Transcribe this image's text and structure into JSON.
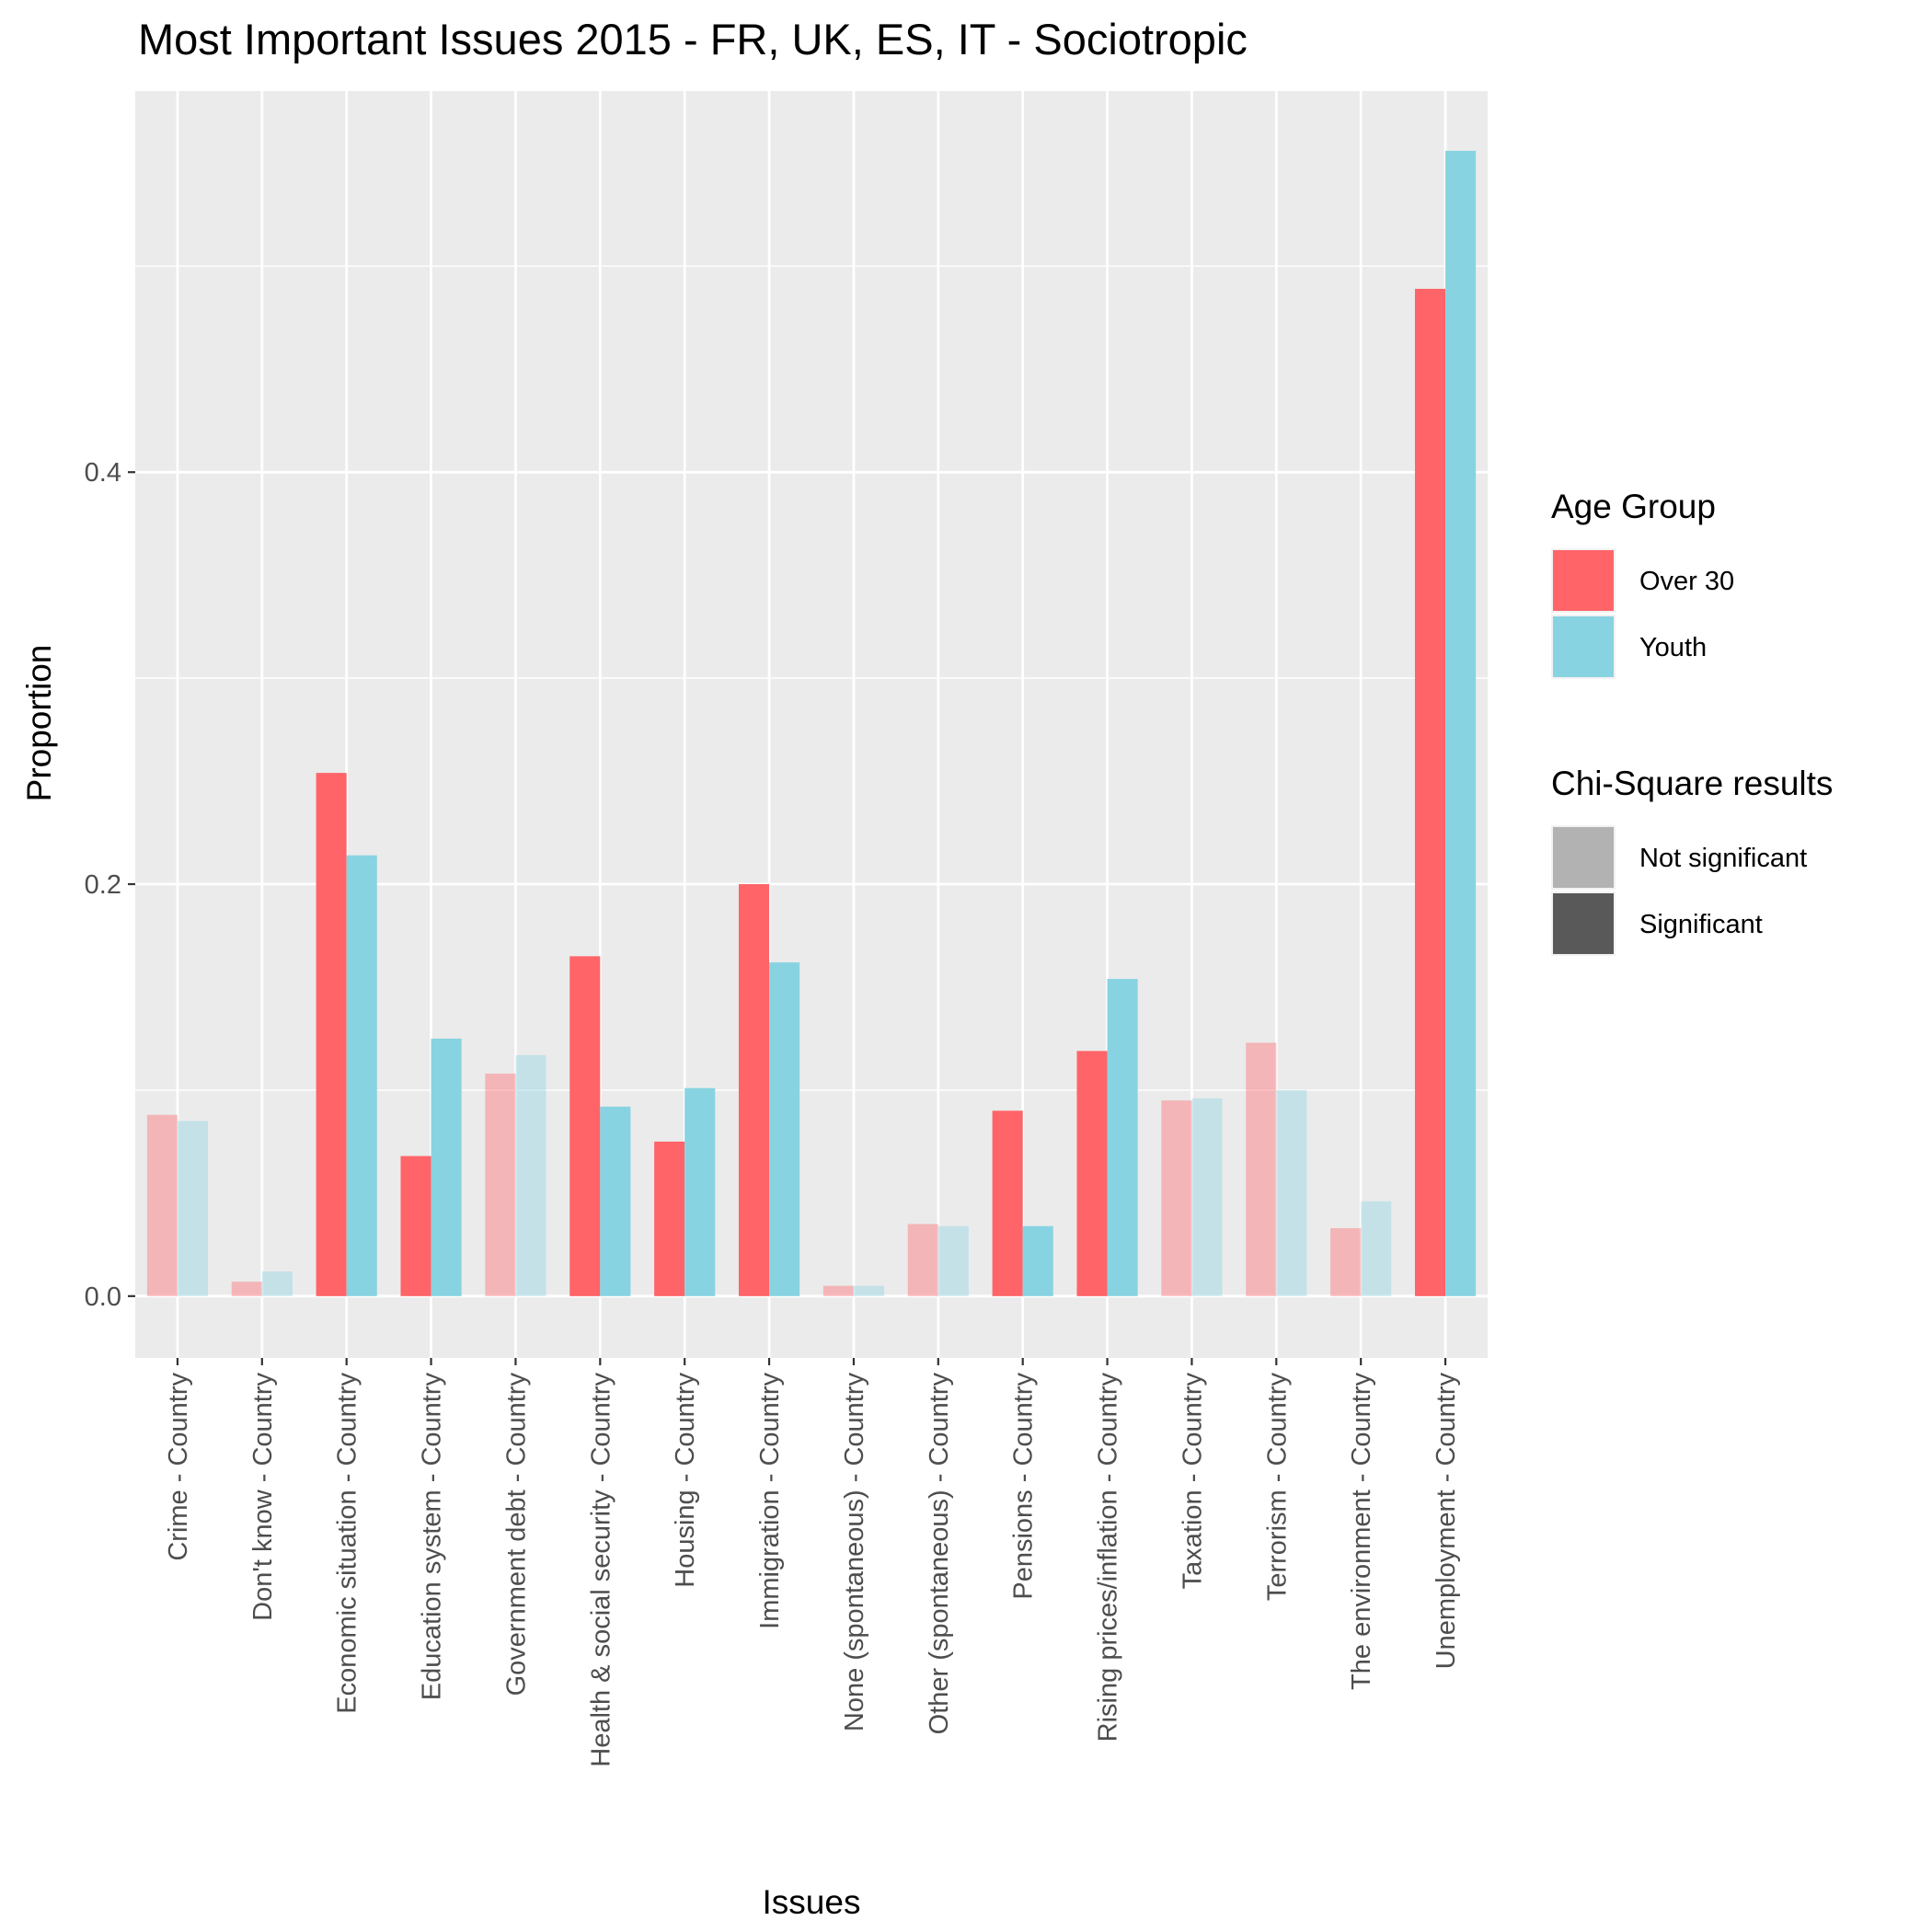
{
  "chart_data": {
    "type": "bar",
    "title": "Most Important Issues 2015 - FR, UK, ES, IT - Sociotropic",
    "xlabel": "Issues",
    "ylabel": "Proportion",
    "ylim": [
      -0.03,
      0.585
    ],
    "y_ticks": [
      0.0,
      0.2,
      0.4
    ],
    "y_tick_labels": [
      "0.0",
      "0.2",
      "0.4"
    ],
    "grid": true,
    "legend_position": "right",
    "categories": [
      "Crime - Country",
      "Don't know - Country",
      "Economic situation - Country",
      "Education system - Country",
      "Government debt - Country",
      "Health & social security - Country",
      "Housing - Country",
      "Immigration - Country",
      "None (spontaneous) - Country",
      "Other (spontaneous) - Country",
      "Pensions - Country",
      "Rising prices/inflation - Country",
      "Taxation - Country",
      "Terrorism - Country",
      "The environment - Country",
      "Unemployment - Country"
    ],
    "series": [
      {
        "name": "Over 30",
        "color": "#FF6469",
        "values": [
          0.088,
          0.007,
          0.254,
          0.068,
          0.108,
          0.165,
          0.075,
          0.2,
          0.005,
          0.035,
          0.09,
          0.119,
          0.095,
          0.123,
          0.033,
          0.489
        ]
      },
      {
        "name": "Youth",
        "color": "#88D3E1",
        "values": [
          0.085,
          0.012,
          0.214,
          0.125,
          0.117,
          0.092,
          0.101,
          0.162,
          0.005,
          0.034,
          0.034,
          0.154,
          0.096,
          0.1,
          0.046,
          0.556
        ]
      }
    ],
    "significant": [
      false,
      false,
      true,
      true,
      false,
      true,
      true,
      true,
      false,
      false,
      true,
      true,
      false,
      false,
      false,
      true
    ],
    "legends": [
      {
        "title": "Age Group",
        "entries": [
          {
            "label": "Over 30",
            "color": "#FF6469"
          },
          {
            "label": "Youth",
            "color": "#88D3E1"
          }
        ]
      },
      {
        "title": "Chi-Square results",
        "entries": [
          {
            "label": "Not significant",
            "color": "#B2B2B2"
          },
          {
            "label": "Significant",
            "color": "#595959"
          }
        ]
      }
    ],
    "panel_background": "#EBEBEB",
    "grid_color": "#FFFFFF",
    "significant_opacity": 1.0,
    "not_significant_opacity": 0.4
  }
}
